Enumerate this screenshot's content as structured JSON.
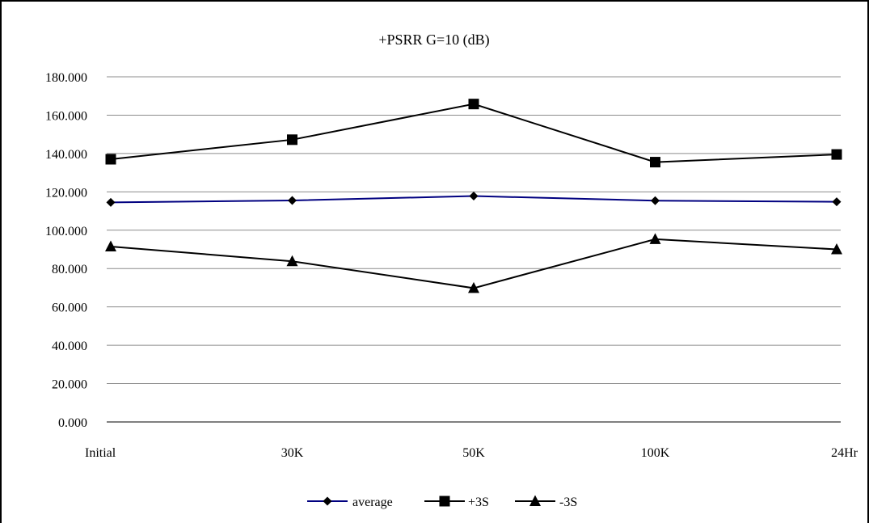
{
  "chart_data": {
    "type": "line",
    "title": "+PSRR G=10 (dB)",
    "xlabel": "",
    "ylabel": "",
    "categories": [
      "Initial",
      "30K",
      "50K",
      "100K",
      "24Hr"
    ],
    "ylim": [
      0,
      180
    ],
    "yticks": [
      0,
      20,
      40,
      60,
      80,
      100,
      120,
      140,
      160,
      180
    ],
    "ytick_labels": [
      "0.000",
      "20.000",
      "40.000",
      "60.000",
      "80.000",
      "100.000",
      "120.000",
      "140.000",
      "160.000",
      "180.000"
    ],
    "grid": true,
    "legend_position": "bottom",
    "series": [
      {
        "name": "average",
        "values": [
          114.5,
          115.5,
          117.8,
          115.4,
          114.8
        ],
        "color": "#000080",
        "marker": "diamond-icon"
      },
      {
        "name": "+3S",
        "values": [
          137.0,
          147.2,
          165.8,
          135.5,
          139.5
        ],
        "color": "#000000",
        "marker": "square-icon"
      },
      {
        "name": "-3S",
        "values": [
          91.5,
          83.8,
          69.8,
          95.3,
          90.0
        ],
        "color": "#000000",
        "marker": "triangle-icon"
      }
    ]
  }
}
